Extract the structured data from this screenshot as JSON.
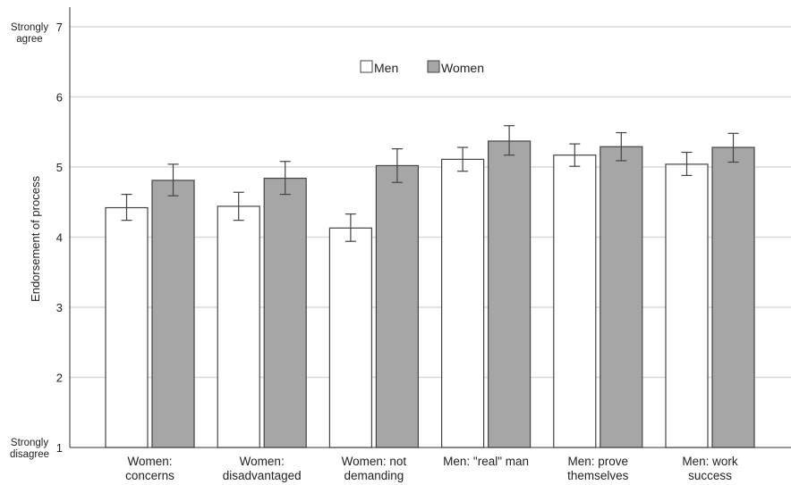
{
  "chart_data": {
    "type": "bar",
    "categories": [
      [
        "Women:",
        "concerns"
      ],
      [
        "Women:",
        "disadvantaged"
      ],
      [
        "Women: not",
        "demanding"
      ],
      [
        "Men: \"real\" man"
      ],
      [
        "Men: prove",
        "themselves"
      ],
      [
        "Men: work",
        "success"
      ]
    ],
    "series": [
      {
        "name": "Men",
        "color": "#ffffff",
        "values": [
          4.42,
          4.44,
          4.13,
          5.11,
          5.17,
          5.04
        ],
        "error_low": [
          4.24,
          4.24,
          3.94,
          4.94,
          5.01,
          4.88
        ],
        "error_high": [
          4.61,
          4.64,
          4.33,
          5.28,
          5.33,
          5.21
        ]
      },
      {
        "name": "Women",
        "color": "#a6a6a6",
        "values": [
          4.81,
          4.84,
          5.02,
          5.37,
          5.29,
          5.28
        ],
        "error_low": [
          4.59,
          4.61,
          4.78,
          5.17,
          5.09,
          5.07
        ],
        "error_high": [
          5.04,
          5.08,
          5.26,
          5.59,
          5.49,
          5.48
        ]
      }
    ],
    "ylabel": "Endorsement of process",
    "ylim": [
      1,
      7
    ],
    "yticks": [
      1,
      2,
      3,
      4,
      5,
      6,
      7
    ],
    "y_anchor_labels": {
      "top": [
        "Strongly",
        "agree"
      ],
      "bottom": [
        "Strongly",
        "disagree"
      ]
    },
    "grid": true,
    "legend_position": "top-center",
    "error_bars": true
  }
}
